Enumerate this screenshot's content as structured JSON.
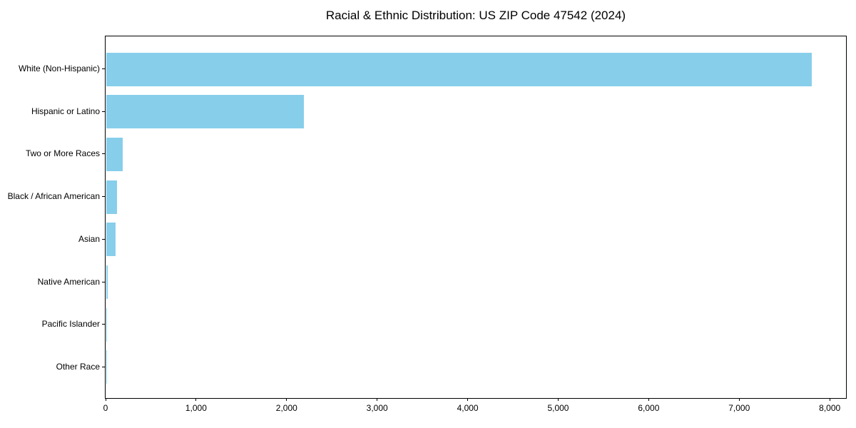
{
  "chart_data": {
    "type": "bar",
    "orientation": "horizontal",
    "title": "Racial & Ethnic Distribution: US ZIP Code 47542 (2024)",
    "categories": [
      "White (Non-Hispanic)",
      "Hispanic or Latino",
      "Two or More Races",
      "Black / African American",
      "Asian",
      "Native American",
      "Pacific Islander",
      "Other Race"
    ],
    "values": [
      7790,
      2180,
      180,
      115,
      100,
      15,
      4,
      2
    ],
    "xlabel": "",
    "ylabel": "",
    "xlim": [
      0,
      8180
    ],
    "xticks": [
      0,
      1000,
      2000,
      3000,
      4000,
      5000,
      6000,
      7000,
      8000
    ],
    "xtick_labels": [
      "0",
      "1,000",
      "2,000",
      "3,000",
      "4,000",
      "5,000",
      "6,000",
      "7,000",
      "8,000"
    ],
    "bar_color": "#87CEEB",
    "axis_color": "#000000",
    "grid": false,
    "legend": null
  }
}
